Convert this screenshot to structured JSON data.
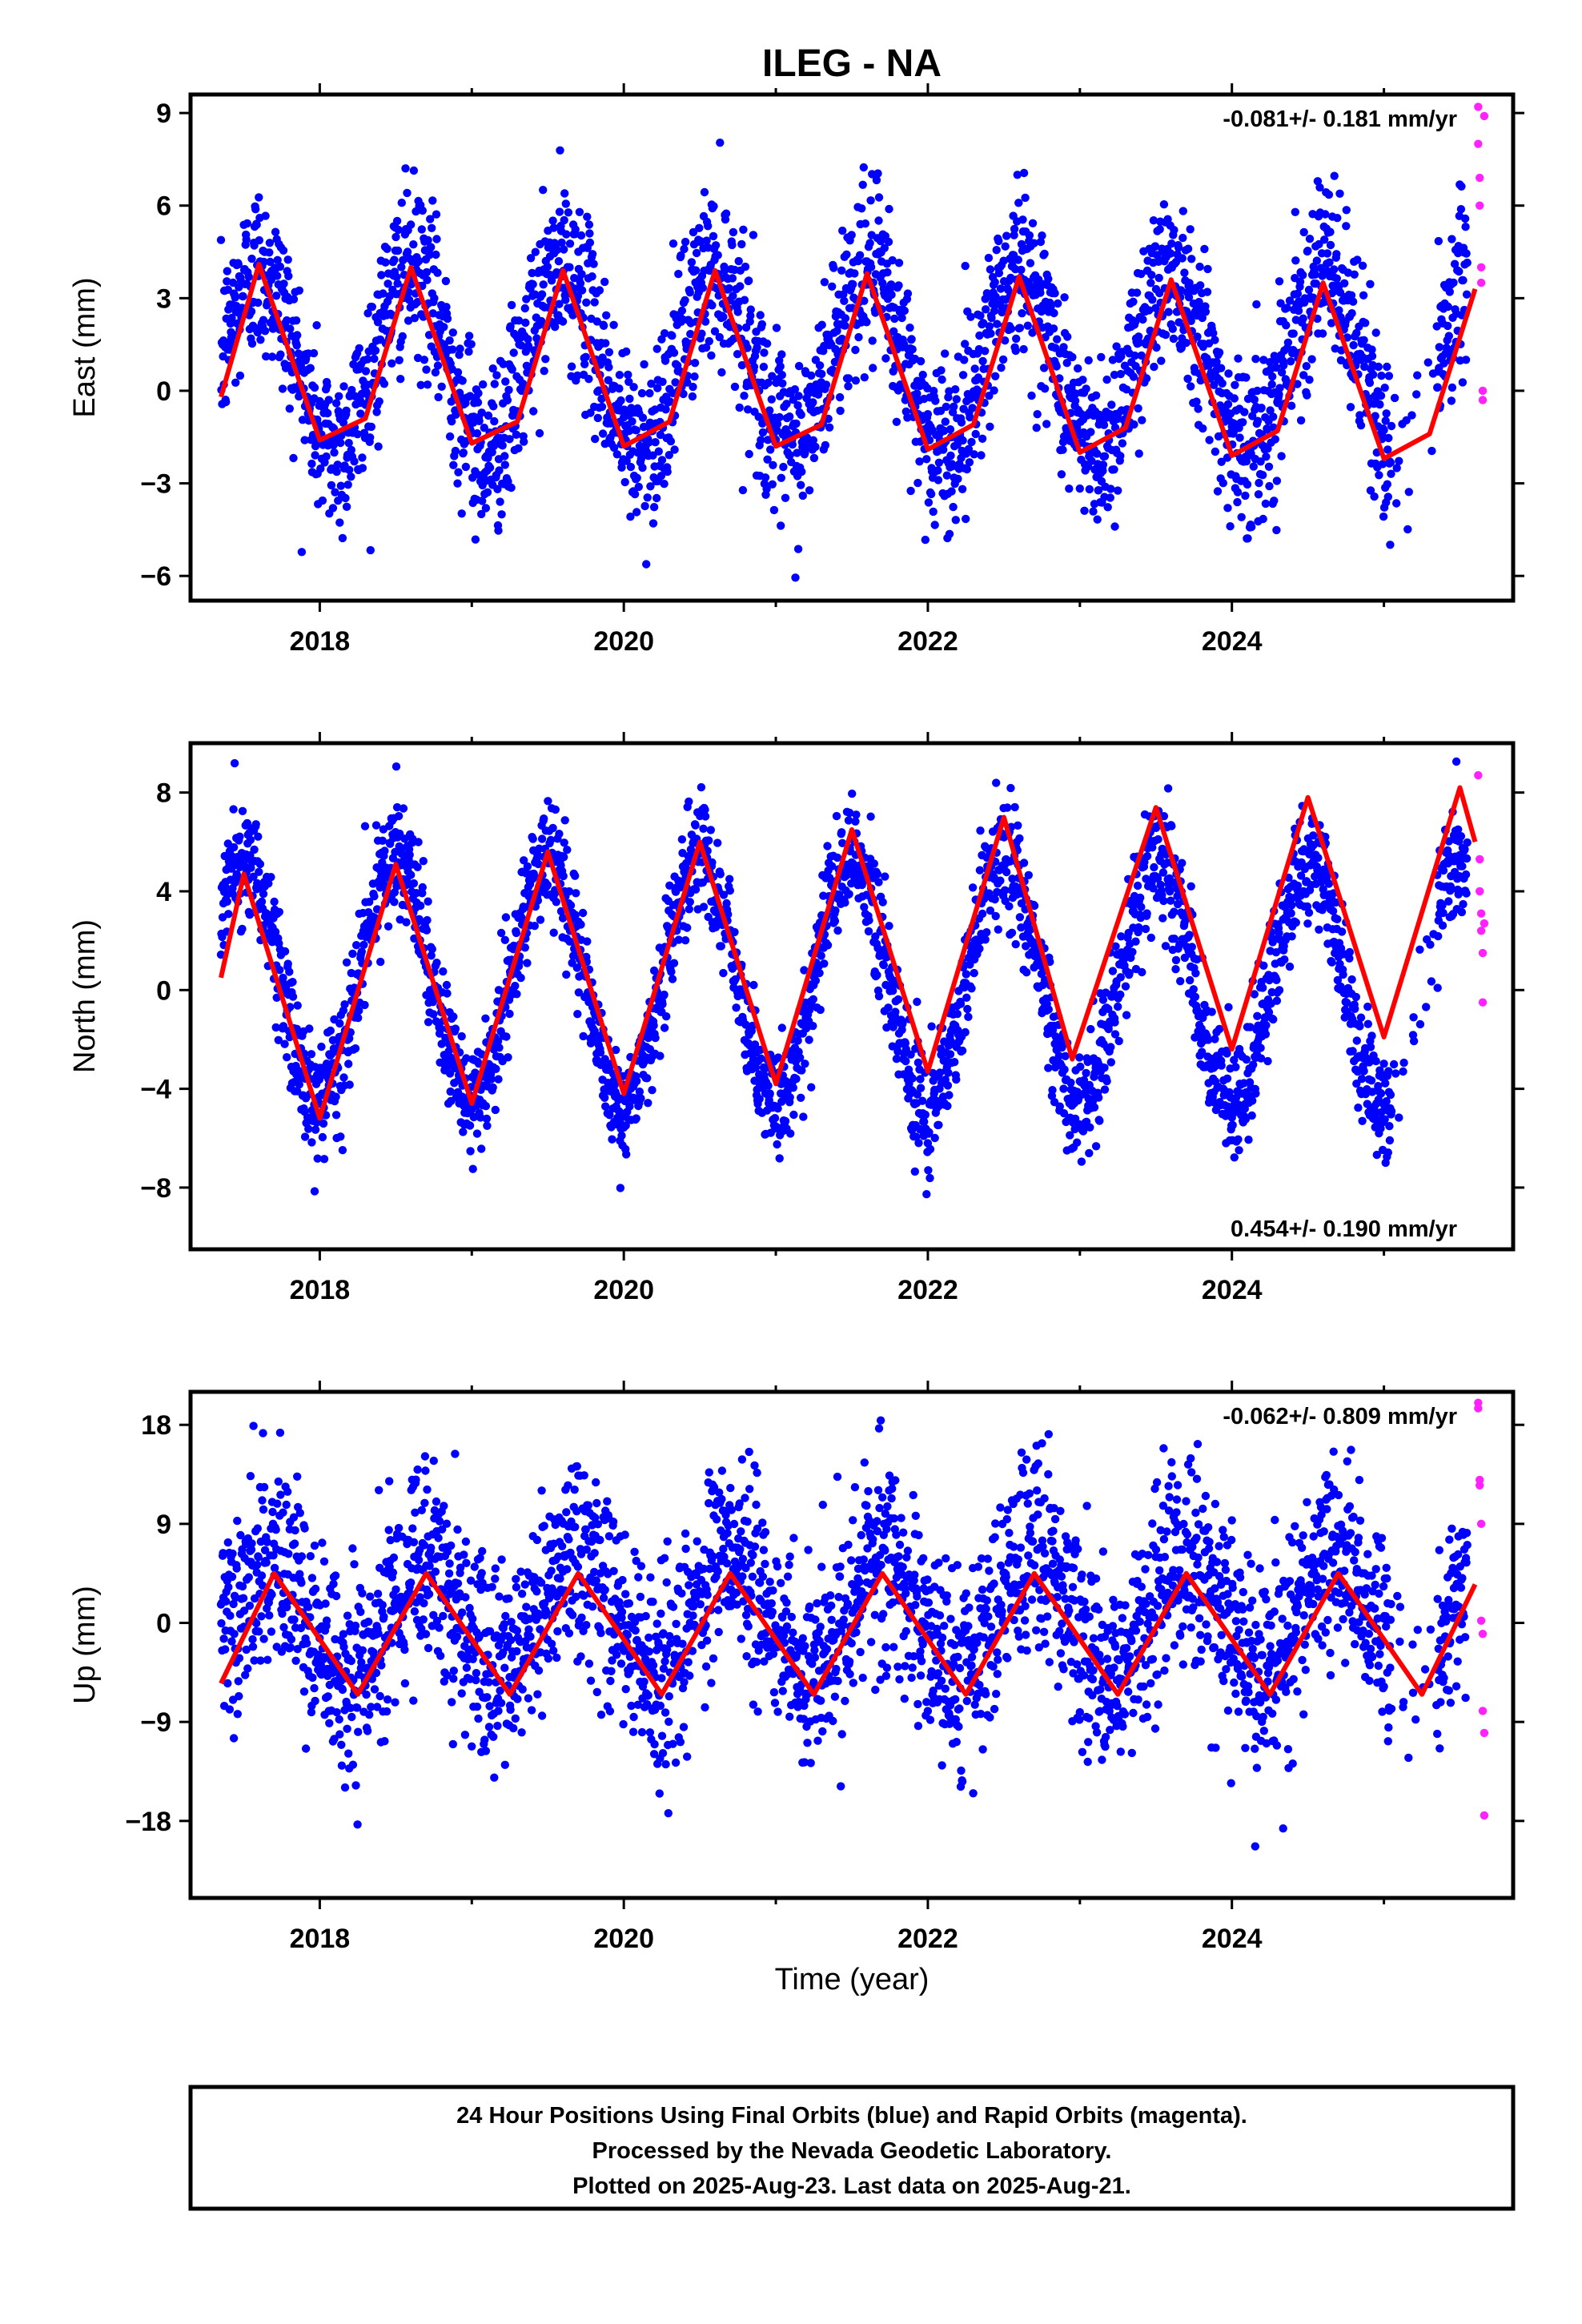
{
  "title": "ILEG - NA",
  "x_axis_label": "Time (year)",
  "colors": {
    "final": "#0000ff",
    "rapid": "#ff22ff",
    "model": "#ff0000",
    "frame": "#000000"
  },
  "footer": {
    "line1": "24 Hour Positions Using Final Orbits (blue) and Rapid Orbits (magenta).",
    "line2": "Processed by the Nevada Geodetic Laboratory.",
    "line3": "Plotted on 2025-Aug-23. Last data on 2025-Aug-21."
  },
  "chart_data": [
    {
      "type": "scatter",
      "component": "East",
      "ylabel": "East (mm)",
      "rate_text": "-0.081+/- 0.181 mm/yr",
      "rate_position": "top-right",
      "xlim": [
        2017.15,
        2025.85
      ],
      "ylim": [
        -6.8,
        9.6
      ],
      "x_ticks": [
        2018,
        2020,
        2022,
        2024
      ],
      "y_ticks": [
        -6,
        -3,
        0,
        3,
        6,
        9
      ],
      "series": [
        {
          "name": "Final Orbits",
          "data_start": 2017.35,
          "data_end": 2025.55,
          "gap": [
            2025.05,
            2025.35
          ],
          "amplitude": 2.9,
          "spread": 1.4,
          "phase_peak": 0.6,
          "mean": 1.0
        },
        {
          "name": "Rapid Orbits",
          "x": [
            2025.62,
            2025.62,
            2025.63,
            2025.63,
            2025.64,
            2025.64,
            2025.65,
            2025.65,
            2025.66
          ],
          "y": [
            9.2,
            8.0,
            6.9,
            6.0,
            4.0,
            3.5,
            0.0,
            -0.3,
            8.9
          ]
        }
      ],
      "model": {
        "name": "Seasonal model",
        "x": [
          2017.35,
          2017.6,
          2018.0,
          2018.3,
          2018.6,
          2019.0,
          2019.3,
          2019.6,
          2020.0,
          2020.3,
          2020.6,
          2021.0,
          2021.3,
          2021.6,
          2022.0,
          2022.3,
          2022.6,
          2023.0,
          2023.3,
          2023.6,
          2024.0,
          2024.3,
          2024.6,
          2025.0,
          2025.3,
          2025.6
        ],
        "y": [
          -0.2,
          4.1,
          -1.6,
          -0.9,
          4.0,
          -1.7,
          -1.0,
          3.9,
          -1.8,
          -1.0,
          3.9,
          -1.8,
          -1.1,
          3.8,
          -1.9,
          -1.1,
          3.7,
          -2.0,
          -1.2,
          3.6,
          -2.1,
          -1.3,
          3.5,
          -2.2,
          -1.4,
          3.3
        ]
      }
    },
    {
      "type": "scatter",
      "component": "North",
      "ylabel": "North (mm)",
      "rate_text": "0.454+/- 0.190 mm/yr",
      "rate_position": "bottom-right",
      "xlim": [
        2017.15,
        2025.85
      ],
      "ylim": [
        -10.5,
        10.0
      ],
      "x_ticks": [
        2018,
        2020,
        2022,
        2024
      ],
      "y_ticks": [
        -8,
        -4,
        0,
        4,
        8
      ],
      "series": [
        {
          "name": "Final Orbits",
          "data_start": 2017.35,
          "data_end": 2025.55,
          "gap": [
            2025.05,
            2025.35
          ],
          "amplitude": 5.0,
          "spread": 1.2,
          "phase_peak": 0.5,
          "mean": 0.3
        },
        {
          "name": "Rapid Orbits",
          "x": [
            2025.62,
            2025.63,
            2025.63,
            2025.64,
            2025.64,
            2025.65,
            2025.65,
            2025.66
          ],
          "y": [
            8.7,
            5.3,
            4.0,
            3.1,
            2.4,
            1.5,
            -0.5,
            2.7
          ]
        }
      ],
      "model": {
        "name": "Seasonal model",
        "x": [
          2017.35,
          2017.5,
          2018.0,
          2018.5,
          2019.0,
          2019.5,
          2020.0,
          2020.5,
          2021.0,
          2021.5,
          2022.0,
          2022.5,
          2022.95,
          2023.5,
          2024.0,
          2024.5,
          2025.0,
          2025.5,
          2025.6
        ],
        "y": [
          0.5,
          4.7,
          -5.2,
          5.1,
          -4.6,
          5.6,
          -4.2,
          6.0,
          -3.8,
          6.5,
          -3.3,
          7.0,
          -2.8,
          7.4,
          -2.4,
          7.8,
          -1.9,
          8.2,
          6.0
        ]
      }
    },
    {
      "type": "scatter",
      "component": "Up",
      "ylabel": "Up (mm)",
      "rate_text": "-0.062+/- 0.809 mm/yr",
      "rate_position": "top-right",
      "xlim": [
        2017.15,
        2025.85
      ],
      "ylim": [
        -25.0,
        21.0
      ],
      "x_ticks": [
        2018,
        2020,
        2022,
        2024
      ],
      "y_ticks": [
        -18,
        -9,
        0,
        9,
        18
      ],
      "series": [
        {
          "name": "Final Orbits",
          "data_start": 2017.35,
          "data_end": 2025.55,
          "gap": [
            2025.05,
            2025.35
          ],
          "amplitude": 5.5,
          "spread": 4.6,
          "phase_peak": 0.7,
          "mean": 0.5
        },
        {
          "name": "Rapid Orbits",
          "x": [
            2025.62,
            2025.62,
            2025.63,
            2025.63,
            2025.64,
            2025.64,
            2025.65,
            2025.65,
            2025.66,
            2025.66
          ],
          "y": [
            20.0,
            19.5,
            13.0,
            12.5,
            9.0,
            0.2,
            -1.0,
            -8.0,
            -10.0,
            -17.5
          ]
        }
      ],
      "model": {
        "name": "Seasonal model",
        "x": [
          2017.35,
          2017.7,
          2018.25,
          2018.7,
          2019.25,
          2019.7,
          2020.25,
          2020.7,
          2021.25,
          2021.7,
          2022.25,
          2022.7,
          2023.25,
          2023.7,
          2024.25,
          2024.7,
          2025.25,
          2025.6
        ],
        "y": [
          -5.5,
          4.5,
          -6.5,
          4.5,
          -6.5,
          4.5,
          -6.5,
          4.5,
          -6.5,
          4.5,
          -6.5,
          4.5,
          -6.5,
          4.5,
          -6.5,
          4.5,
          -6.5,
          3.5
        ]
      }
    }
  ]
}
